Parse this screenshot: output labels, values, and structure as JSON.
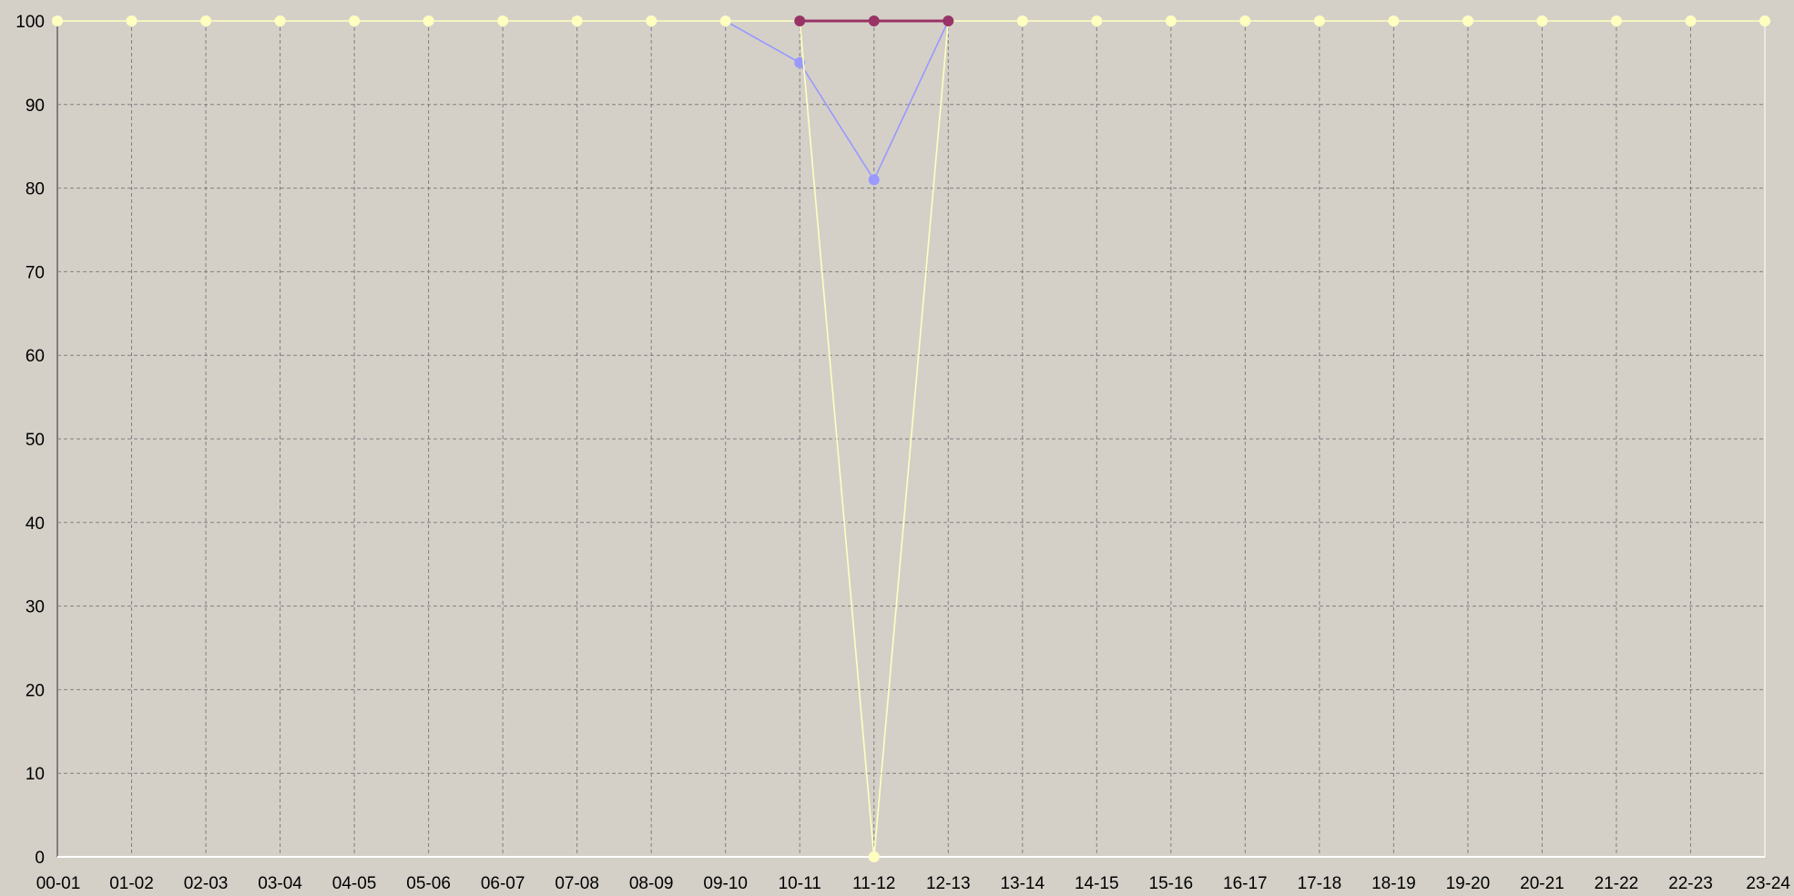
{
  "chart_data": {
    "type": "line",
    "title": "",
    "xlabel": "",
    "ylabel": "",
    "categories": [
      "00-01",
      "01-02",
      "02-03",
      "03-04",
      "04-05",
      "05-06",
      "06-07",
      "07-08",
      "08-09",
      "09-10",
      "10-11",
      "11-12",
      "12-13",
      "13-14",
      "14-15",
      "15-16",
      "16-17",
      "17-18",
      "18-19",
      "19-20",
      "20-21",
      "21-22",
      "22-23",
      "23-24"
    ],
    "y_ticks": [
      0,
      10,
      20,
      30,
      40,
      50,
      60,
      70,
      80,
      90,
      100
    ],
    "ylim": [
      0,
      100
    ],
    "grid": true,
    "background_color": "#d4d0c8",
    "grid_color": "#808080",
    "series": [
      {
        "color": "#ffffc0",
        "values": [
          100,
          100,
          100,
          100,
          100,
          100,
          100,
          100,
          100,
          100,
          100,
          0,
          100,
          100,
          100,
          100,
          100,
          100,
          100,
          100,
          100,
          100,
          100,
          100
        ]
      },
      {
        "color": "#9999ff",
        "values": [
          null,
          null,
          null,
          null,
          null,
          null,
          null,
          null,
          null,
          100,
          95,
          81,
          100,
          null,
          null,
          null,
          null,
          null,
          null,
          null,
          null,
          null,
          null,
          null
        ]
      },
      {
        "color": "#993366",
        "values": [
          null,
          null,
          null,
          null,
          null,
          null,
          null,
          null,
          null,
          null,
          100,
          100,
          100,
          null,
          null,
          null,
          null,
          null,
          null,
          null,
          null,
          null,
          null,
          null
        ]
      }
    ]
  }
}
